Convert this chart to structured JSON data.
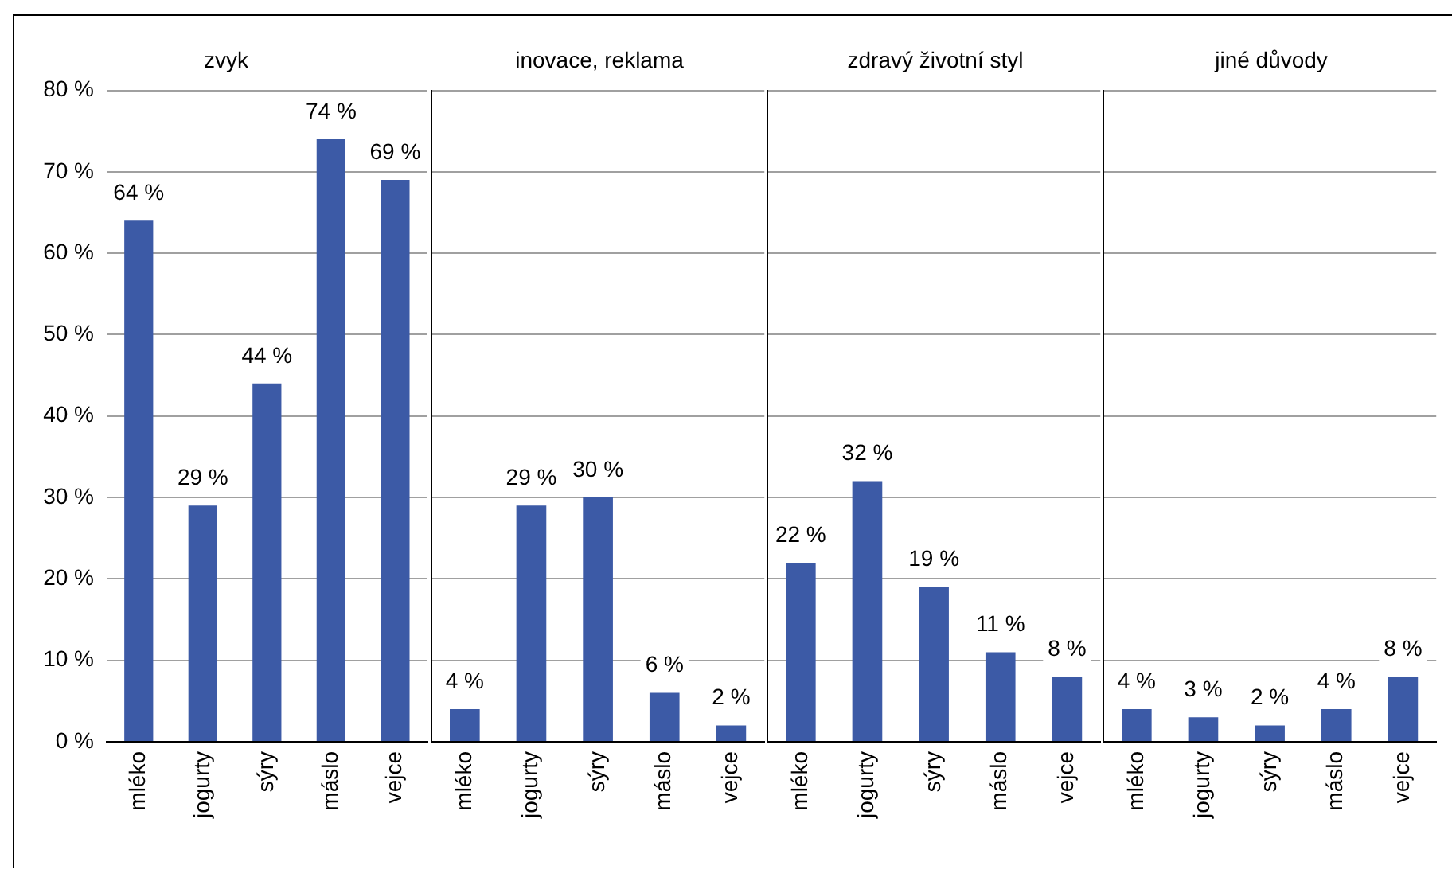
{
  "chart_data": [
    {
      "type": "bar",
      "title": "zvyk",
      "categories": [
        "mléko",
        "jogurty",
        "sýry",
        "máslo",
        "vejce"
      ],
      "values": [
        64,
        29,
        44,
        74,
        69
      ],
      "value_labels": [
        "64 %",
        "29 %",
        "44 %",
        "74 %",
        "69 %"
      ],
      "color": "#3c5aa6",
      "ylim": [
        0,
        80
      ],
      "yticks": [
        {
          "value": 0,
          "label": "0 %"
        },
        {
          "value": 10,
          "label": "10 %"
        },
        {
          "value": 20,
          "label": "20 %"
        },
        {
          "value": 30,
          "label": "30 %"
        },
        {
          "value": 40,
          "label": "40 %"
        },
        {
          "value": 50,
          "label": "50 %"
        },
        {
          "value": 60,
          "label": "60 %"
        },
        {
          "value": 70,
          "label": "70 %"
        },
        {
          "value": 80,
          "label": "80 %"
        }
      ],
      "grid": "y"
    },
    {
      "type": "bar",
      "title": "inovace, reklama",
      "categories": [
        "mléko",
        "jogurty",
        "sýry",
        "máslo",
        "vejce"
      ],
      "values": [
        4,
        29,
        30,
        6,
        2
      ],
      "value_labels": [
        "4 %",
        "29 %",
        "30 %",
        "6 %",
        "2 %"
      ],
      "color": "#3c5aa6",
      "ylim": [
        0,
        80
      ],
      "yticks": [
        {
          "value": 0,
          "label": null
        },
        {
          "value": 10,
          "label": null
        },
        {
          "value": 20,
          "label": null
        },
        {
          "value": 30,
          "label": null
        },
        {
          "value": 40,
          "label": null
        },
        {
          "value": 50,
          "label": null
        },
        {
          "value": 60,
          "label": null
        },
        {
          "value": 70,
          "label": null
        },
        {
          "value": 80,
          "label": null
        }
      ],
      "grid": "y",
      "tick_labels": "x"
    },
    {
      "type": "bar",
      "title": "zdravý životní styl",
      "categories": [
        "mléko",
        "jogurty",
        "sýry",
        "máslo",
        "vejce"
      ],
      "values": [
        22,
        32,
        19,
        11,
        8
      ],
      "value_labels": [
        "22 %",
        "32 %",
        "19 %",
        "11 %",
        "8 %"
      ],
      "color": "#3c5aa6",
      "ylim": [
        0,
        80
      ],
      "yticks": [
        {
          "value": 0,
          "label": null
        },
        {
          "value": 10,
          "label": null
        },
        {
          "value": 20,
          "label": null
        },
        {
          "value": 30,
          "label": null
        },
        {
          "value": 40,
          "label": null
        },
        {
          "value": 50,
          "label": null
        },
        {
          "value": 60,
          "label": null
        },
        {
          "value": 70,
          "label": null
        },
        {
          "value": 80,
          "label": null
        }
      ],
      "grid": "y",
      "tick_labels": "x"
    },
    {
      "type": "bar",
      "title": "jiné důvody",
      "categories": [
        "mléko",
        "jogurty",
        "sýry",
        "máslo",
        "vejce"
      ],
      "values": [
        4,
        3,
        2,
        4,
        8
      ],
      "value_labels": [
        "4 %",
        "3 %",
        "2 %",
        "4 %",
        "8 %"
      ],
      "color": "#3c5aa6",
      "ylim": [
        0,
        80
      ],
      "yticks": [
        {
          "value": 0,
          "label": null
        },
        {
          "value": 10,
          "label": null
        },
        {
          "value": 20,
          "label": null
        },
        {
          "value": 30,
          "label": null
        },
        {
          "value": 40,
          "label": null
        },
        {
          "value": 50,
          "label": null
        },
        {
          "value": 60,
          "label": null
        },
        {
          "value": 70,
          "label": null
        },
        {
          "value": 80,
          "label": null
        }
      ],
      "grid": "y",
      "tick_labels": "x"
    }
  ]
}
